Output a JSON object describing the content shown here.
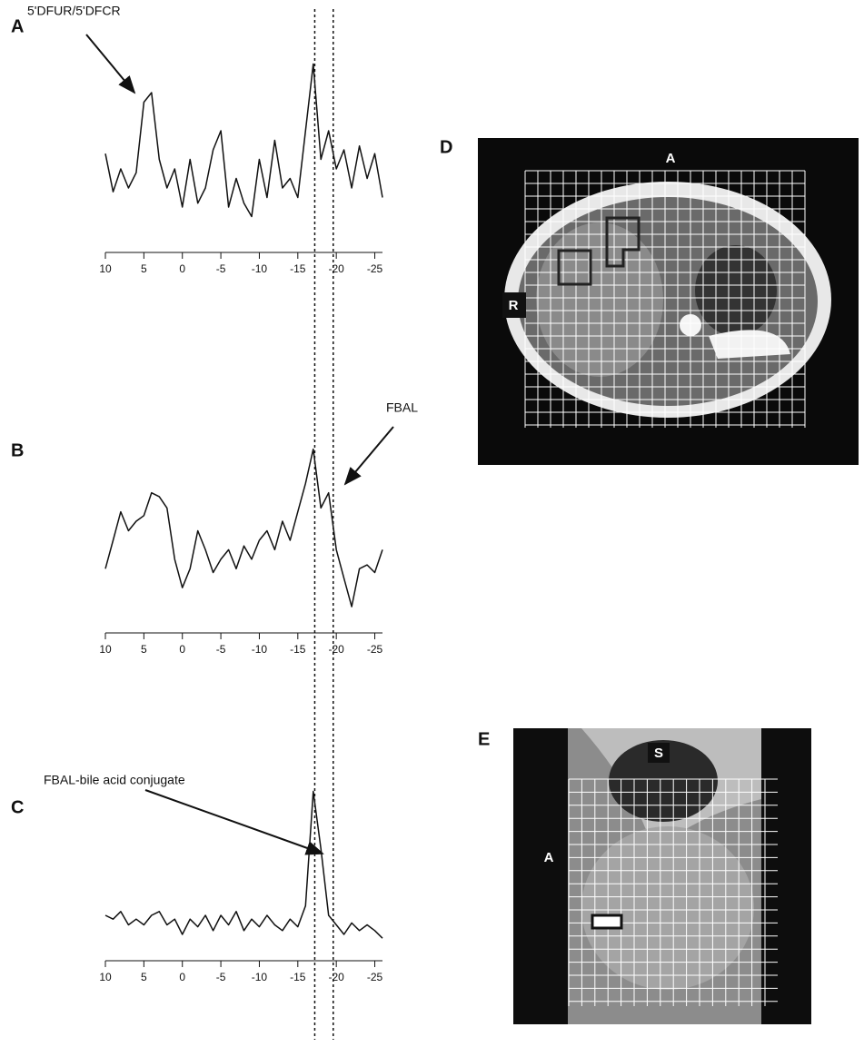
{
  "chart_data": [
    {
      "type": "line",
      "panel": "A",
      "annotation": "5'DFUR/5'DFCR",
      "x": [
        10,
        9,
        8,
        7,
        6,
        5,
        4,
        3,
        2,
        1,
        0,
        -1,
        -2,
        -3,
        -4,
        -5,
        -6,
        -7,
        -8,
        -9,
        -10,
        -11,
        -12,
        -13,
        -14,
        -15,
        -16,
        -17,
        -18,
        -19,
        -20,
        -21,
        -22,
        -23,
        -24,
        -25,
        -26
      ],
      "values": [
        48,
        28,
        40,
        30,
        38,
        75,
        80,
        45,
        30,
        40,
        20,
        45,
        22,
        30,
        50,
        60,
        20,
        35,
        22,
        15,
        45,
        25,
        55,
        30,
        35,
        25,
        60,
        95,
        45,
        60,
        40,
        50,
        30,
        52,
        35,
        48,
        25
      ],
      "color": "#111111",
      "xlim": [
        10,
        -26
      ],
      "xticks": [
        10,
        5,
        0,
        -5,
        -10,
        -15,
        -20,
        -25
      ],
      "ylim": [
        0,
        100
      ]
    },
    {
      "type": "line",
      "panel": "B",
      "annotation": "FBAL",
      "x": [
        10,
        9,
        8,
        7,
        6,
        5,
        4,
        3,
        2,
        1,
        0,
        -1,
        -2,
        -3,
        -4,
        -5,
        -6,
        -7,
        -8,
        -9,
        -10,
        -11,
        -12,
        -13,
        -14,
        -15,
        -16,
        -17,
        -18,
        -19,
        -20,
        -21,
        -22,
        -23,
        -24,
        -25,
        -26
      ],
      "values": [
        30,
        45,
        60,
        50,
        55,
        58,
        70,
        68,
        62,
        35,
        20,
        30,
        50,
        40,
        28,
        35,
        40,
        30,
        42,
        35,
        45,
        50,
        40,
        55,
        45,
        60,
        75,
        93,
        62,
        70,
        40,
        25,
        10,
        30,
        32,
        28,
        40
      ],
      "color": "#111111",
      "xlim": [
        10,
        -26
      ],
      "xticks": [
        10,
        5,
        0,
        -5,
        -10,
        -15,
        -20,
        -25
      ],
      "ylim": [
        0,
        100
      ]
    },
    {
      "type": "line",
      "panel": "C",
      "annotation": "FBAL-bile acid conjugate",
      "x": [
        10,
        9,
        8,
        7,
        6,
        5,
        4,
        3,
        2,
        1,
        0,
        -1,
        -2,
        -3,
        -4,
        -5,
        -6,
        -7,
        -8,
        -9,
        -10,
        -11,
        -12,
        -13,
        -14,
        -15,
        -16,
        -17,
        -18,
        -19,
        -20,
        -21,
        -22,
        -23,
        -24,
        -25,
        -26
      ],
      "values": [
        20,
        18,
        22,
        15,
        18,
        15,
        20,
        22,
        15,
        18,
        10,
        18,
        14,
        20,
        12,
        20,
        15,
        22,
        12,
        18,
        14,
        20,
        15,
        12,
        18,
        14,
        25,
        85,
        55,
        20,
        15,
        10,
        16,
        12,
        15,
        12,
        8
      ],
      "color": "#111111",
      "xlim": [
        10,
        -26
      ],
      "xticks": [
        10,
        5,
        0,
        -5,
        -10,
        -15,
        -20,
        -25
      ],
      "ylim": [
        0,
        100
      ]
    }
  ],
  "reference_x": [
    -17.2,
    -19.6
  ],
  "images": {
    "d": {
      "panel": "D",
      "labels": [
        "A",
        "R"
      ]
    },
    "e": {
      "panel": "E",
      "labels": [
        "S",
        "A"
      ]
    }
  }
}
